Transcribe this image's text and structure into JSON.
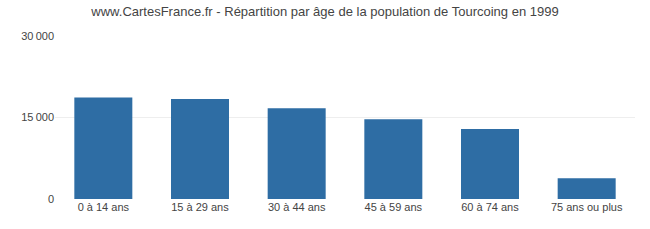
{
  "chart_data": {
    "type": "bar",
    "title": "www.CartesFrance.fr - Répartition par âge de la population de Tourcoing en 1999",
    "categories": [
      "0 à 14 ans",
      "15 à 29 ans",
      "30 à 44 ans",
      "45 à 59 ans",
      "60 à 74 ans",
      "75 ans ou plus"
    ],
    "values": [
      18700,
      18400,
      16700,
      14700,
      12900,
      3800
    ],
    "color": "#2e6da4",
    "ylim": [
      0,
      30000
    ],
    "yticks": [
      0,
      {
        "value": 15000,
        "label": "15 000"
      },
      {
        "value": 30000,
        "label": "30 000"
      }
    ],
    "grid": true
  }
}
